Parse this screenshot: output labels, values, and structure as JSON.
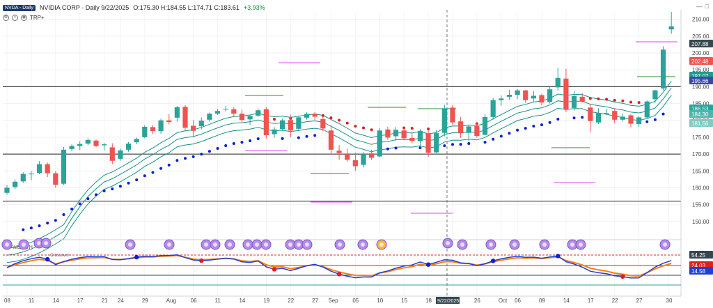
{
  "header": {
    "symbol_chip": "NVDA - Daily",
    "title": "NVIDIA CORP - Daily 9/22/2025",
    "ohlc": "O:175.30 H:184.55 L:174.71 C:183.61",
    "change": "+3.93%",
    "sub_label": "TRP+"
  },
  "colors": {
    "up": "#2aa39a",
    "down": "#ef5350",
    "blue_dot": "#0a1fd6",
    "red_dot": "#e11d1d",
    "band": "#1a8f8a",
    "magenta": "#e040fb",
    "green_line": "#2e8b2e",
    "osc_orange": "#ff7f0e",
    "osc_red": "#e02020",
    "osc_blue": "#1f3fd6"
  },
  "price_labels": [
    {
      "value": "207.88",
      "bg": "#37474f",
      "fg": "#ffffff"
    },
    {
      "value": "202.48",
      "bg": "#ef5350",
      "fg": "#ffffff"
    },
    {
      "value": "197.07",
      "bg": "#1a9e8f",
      "fg": "#ffffff"
    },
    {
      "value": "195.66",
      "bg": "#3949ab",
      "fg": "#ffffff"
    },
    {
      "value": "186.53",
      "bg": "#26a69a",
      "fg": "#ffffff"
    },
    {
      "value": "184.30",
      "bg": "#4db6ac",
      "fg": "#ffffff"
    },
    {
      "value": "181.56",
      "bg": "#80cbc4",
      "fg": "#ffffff"
    }
  ],
  "osc_labels": [
    {
      "value": "54.25",
      "bg": "#37474f",
      "fg": "#ffffff"
    },
    {
      "value": "24.03",
      "bg": "#e02020",
      "fg": "#ffffff"
    },
    {
      "value": "14.58",
      "bg": "#1f3fd6",
      "fg": "#ffffff"
    }
  ],
  "cursor_date": "9/22/2025",
  "wealth_label": "WEALTH",
  "osc_label": "Crossover",
  "chart_data": {
    "type": "candlestick",
    "title": "NVIDIA CORP - Daily",
    "ylim": [
      145,
      212
    ],
    "y_ticks": [
      150,
      155,
      160,
      165,
      170,
      175,
      180,
      185,
      190,
      195,
      200,
      205,
      210
    ],
    "y_tick_labels": [
      "150.00",
      "155.00",
      "160.00",
      "165.00",
      "170.00",
      "175.00",
      "180.00",
      "185.00",
      "190.00",
      "195.00",
      "200.00",
      "205.00",
      "210.00"
    ],
    "x_ticks": [
      "08",
      "11",
      "14",
      "17",
      "21",
      "24",
      "29",
      "Aug",
      "06",
      "11",
      "14",
      "19",
      "22",
      "27",
      "Sep",
      "05",
      "10",
      "15",
      "18",
      "9/22/2025",
      "26",
      "Oct",
      "06",
      "09",
      "14",
      "17",
      "22",
      "27",
      "30"
    ],
    "candles": [
      {
        "o": 158.5,
        "h": 160.8,
        "l": 157.9,
        "c": 160.0
      },
      {
        "o": 160.2,
        "h": 162.5,
        "l": 159.6,
        "c": 161.8
      },
      {
        "o": 161.9,
        "h": 164.6,
        "l": 161.4,
        "c": 164.1
      },
      {
        "o": 164.0,
        "h": 165.0,
        "l": 162.2,
        "c": 164.2
      },
      {
        "o": 164.4,
        "h": 167.9,
        "l": 164.0,
        "c": 167.0
      },
      {
        "o": 167.0,
        "h": 167.5,
        "l": 163.2,
        "c": 164.3
      },
      {
        "o": 164.3,
        "h": 164.9,
        "l": 160.0,
        "c": 160.9
      },
      {
        "o": 161.2,
        "h": 172.1,
        "l": 160.8,
        "c": 171.3
      },
      {
        "o": 171.5,
        "h": 172.9,
        "l": 170.8,
        "c": 172.4
      },
      {
        "o": 172.4,
        "h": 173.8,
        "l": 171.2,
        "c": 173.0
      },
      {
        "o": 173.1,
        "h": 174.7,
        "l": 172.6,
        "c": 174.2
      },
      {
        "o": 174.0,
        "h": 174.3,
        "l": 172.0,
        "c": 172.4
      },
      {
        "o": 172.6,
        "h": 173.3,
        "l": 171.1,
        "c": 172.9
      },
      {
        "o": 172.0,
        "h": 173.2,
        "l": 167.0,
        "c": 168.0
      },
      {
        "o": 168.6,
        "h": 171.6,
        "l": 168.0,
        "c": 171.1
      },
      {
        "o": 171.3,
        "h": 173.6,
        "l": 170.7,
        "c": 173.1
      },
      {
        "o": 173.5,
        "h": 174.9,
        "l": 172.9,
        "c": 174.5
      },
      {
        "o": 175.0,
        "h": 178.6,
        "l": 174.7,
        "c": 178.1
      },
      {
        "o": 178.0,
        "h": 178.6,
        "l": 175.9,
        "c": 176.8
      },
      {
        "o": 176.8,
        "h": 180.5,
        "l": 176.0,
        "c": 180.0
      },
      {
        "o": 180.0,
        "h": 181.8,
        "l": 178.8,
        "c": 179.5
      },
      {
        "o": 180.8,
        "h": 184.3,
        "l": 179.6,
        "c": 183.9
      },
      {
        "o": 184.0,
        "h": 184.5,
        "l": 177.0,
        "c": 177.8
      },
      {
        "o": 178.4,
        "h": 180.1,
        "l": 175.1,
        "c": 176.9
      },
      {
        "o": 178.3,
        "h": 180.9,
        "l": 177.3,
        "c": 179.9
      },
      {
        "o": 180.2,
        "h": 182.3,
        "l": 179.6,
        "c": 182.0
      },
      {
        "o": 182.0,
        "h": 183.4,
        "l": 181.6,
        "c": 182.8
      },
      {
        "o": 183.3,
        "h": 184.3,
        "l": 182.6,
        "c": 183.4
      },
      {
        "o": 183.3,
        "h": 183.9,
        "l": 181.1,
        "c": 182.0
      },
      {
        "o": 182.0,
        "h": 183.2,
        "l": 179.5,
        "c": 180.1
      },
      {
        "o": 180.3,
        "h": 181.6,
        "l": 178.6,
        "c": 181.3
      },
      {
        "o": 181.4,
        "h": 183.5,
        "l": 181.1,
        "c": 183.0
      },
      {
        "o": 183.3,
        "h": 183.9,
        "l": 174.6,
        "c": 175.6
      },
      {
        "o": 175.9,
        "h": 178.0,
        "l": 174.9,
        "c": 177.3
      },
      {
        "o": 177.4,
        "h": 180.6,
        "l": 176.9,
        "c": 180.0
      },
      {
        "o": 180.1,
        "h": 181.7,
        "l": 175.0,
        "c": 177.0
      },
      {
        "o": 177.5,
        "h": 181.4,
        "l": 176.8,
        "c": 180.9
      },
      {
        "o": 180.8,
        "h": 182.4,
        "l": 180.2,
        "c": 181.9
      },
      {
        "o": 182.0,
        "h": 182.5,
        "l": 180.1,
        "c": 181.1
      },
      {
        "o": 180.4,
        "h": 181.2,
        "l": 176.8,
        "c": 177.6
      },
      {
        "o": 177.0,
        "h": 178.5,
        "l": 169.9,
        "c": 171.3
      },
      {
        "o": 171.0,
        "h": 172.7,
        "l": 168.3,
        "c": 170.3
      },
      {
        "o": 170.0,
        "h": 171.6,
        "l": 167.7,
        "c": 168.3
      },
      {
        "o": 168.2,
        "h": 170.4,
        "l": 165.0,
        "c": 166.4
      },
      {
        "o": 166.8,
        "h": 170.6,
        "l": 166.0,
        "c": 170.0
      },
      {
        "o": 170.2,
        "h": 171.3,
        "l": 168.2,
        "c": 168.9
      },
      {
        "o": 169.3,
        "h": 177.7,
        "l": 169.0,
        "c": 177.0
      },
      {
        "o": 177.3,
        "h": 178.1,
        "l": 174.2,
        "c": 174.9
      },
      {
        "o": 175.3,
        "h": 178.0,
        "l": 174.0,
        "c": 177.2
      },
      {
        "o": 177.0,
        "h": 177.8,
        "l": 174.1,
        "c": 174.7
      },
      {
        "o": 174.8,
        "h": 176.3,
        "l": 173.2,
        "c": 173.9
      },
      {
        "o": 173.8,
        "h": 177.4,
        "l": 171.9,
        "c": 176.9
      },
      {
        "o": 176.1,
        "h": 177.1,
        "l": 169.2,
        "c": 170.4
      },
      {
        "o": 170.5,
        "h": 177.3,
        "l": 170.2,
        "c": 176.2
      },
      {
        "o": 176.3,
        "h": 184.6,
        "l": 175.3,
        "c": 183.6
      },
      {
        "o": 183.8,
        "h": 184.6,
        "l": 178.7,
        "c": 179.4
      },
      {
        "o": 179.7,
        "h": 181.0,
        "l": 174.8,
        "c": 176.2
      },
      {
        "o": 176.3,
        "h": 178.6,
        "l": 173.8,
        "c": 178.2
      },
      {
        "o": 178.3,
        "h": 179.4,
        "l": 174.8,
        "c": 175.4
      },
      {
        "o": 175.7,
        "h": 182.0,
        "l": 175.6,
        "c": 181.0
      },
      {
        "o": 181.0,
        "h": 186.6,
        "l": 180.2,
        "c": 186.0
      },
      {
        "o": 186.0,
        "h": 187.4,
        "l": 184.4,
        "c": 186.5
      },
      {
        "o": 187.0,
        "h": 189.1,
        "l": 186.1,
        "c": 187.6
      },
      {
        "o": 187.6,
        "h": 189.3,
        "l": 186.3,
        "c": 188.9
      },
      {
        "o": 188.9,
        "h": 189.0,
        "l": 185.2,
        "c": 186.0
      },
      {
        "o": 186.5,
        "h": 188.7,
        "l": 185.5,
        "c": 187.3
      },
      {
        "o": 187.5,
        "h": 187.9,
        "l": 184.5,
        "c": 185.3
      },
      {
        "o": 185.5,
        "h": 190.0,
        "l": 185.0,
        "c": 189.2
      },
      {
        "o": 189.8,
        "h": 195.6,
        "l": 188.8,
        "c": 192.6
      },
      {
        "o": 192.4,
        "h": 195.3,
        "l": 182.5,
        "c": 183.3
      },
      {
        "o": 183.7,
        "h": 188.8,
        "l": 182.8,
        "c": 187.2
      },
      {
        "o": 187.0,
        "h": 188.1,
        "l": 185.3,
        "c": 185.6
      },
      {
        "o": 183.8,
        "h": 184.8,
        "l": 176.5,
        "c": 179.8
      },
      {
        "o": 179.4,
        "h": 183.6,
        "l": 178.9,
        "c": 182.1
      },
      {
        "o": 182.2,
        "h": 183.4,
        "l": 181.5,
        "c": 182.2
      },
      {
        "o": 182.8,
        "h": 183.6,
        "l": 179.1,
        "c": 180.2
      },
      {
        "o": 180.2,
        "h": 182.0,
        "l": 179.7,
        "c": 181.1
      },
      {
        "o": 181.5,
        "h": 181.8,
        "l": 178.0,
        "c": 179.0
      },
      {
        "o": 178.9,
        "h": 181.3,
        "l": 178.0,
        "c": 180.9
      },
      {
        "o": 180.9,
        "h": 185.9,
        "l": 180.4,
        "c": 185.6
      },
      {
        "o": 186.3,
        "h": 189.1,
        "l": 185.2,
        "c": 188.9
      },
      {
        "o": 189.5,
        "h": 202.0,
        "l": 188.9,
        "c": 201.0
      },
      {
        "o": 207.0,
        "h": 212.2,
        "l": 205.7,
        "c": 207.9
      }
    ]
  }
}
